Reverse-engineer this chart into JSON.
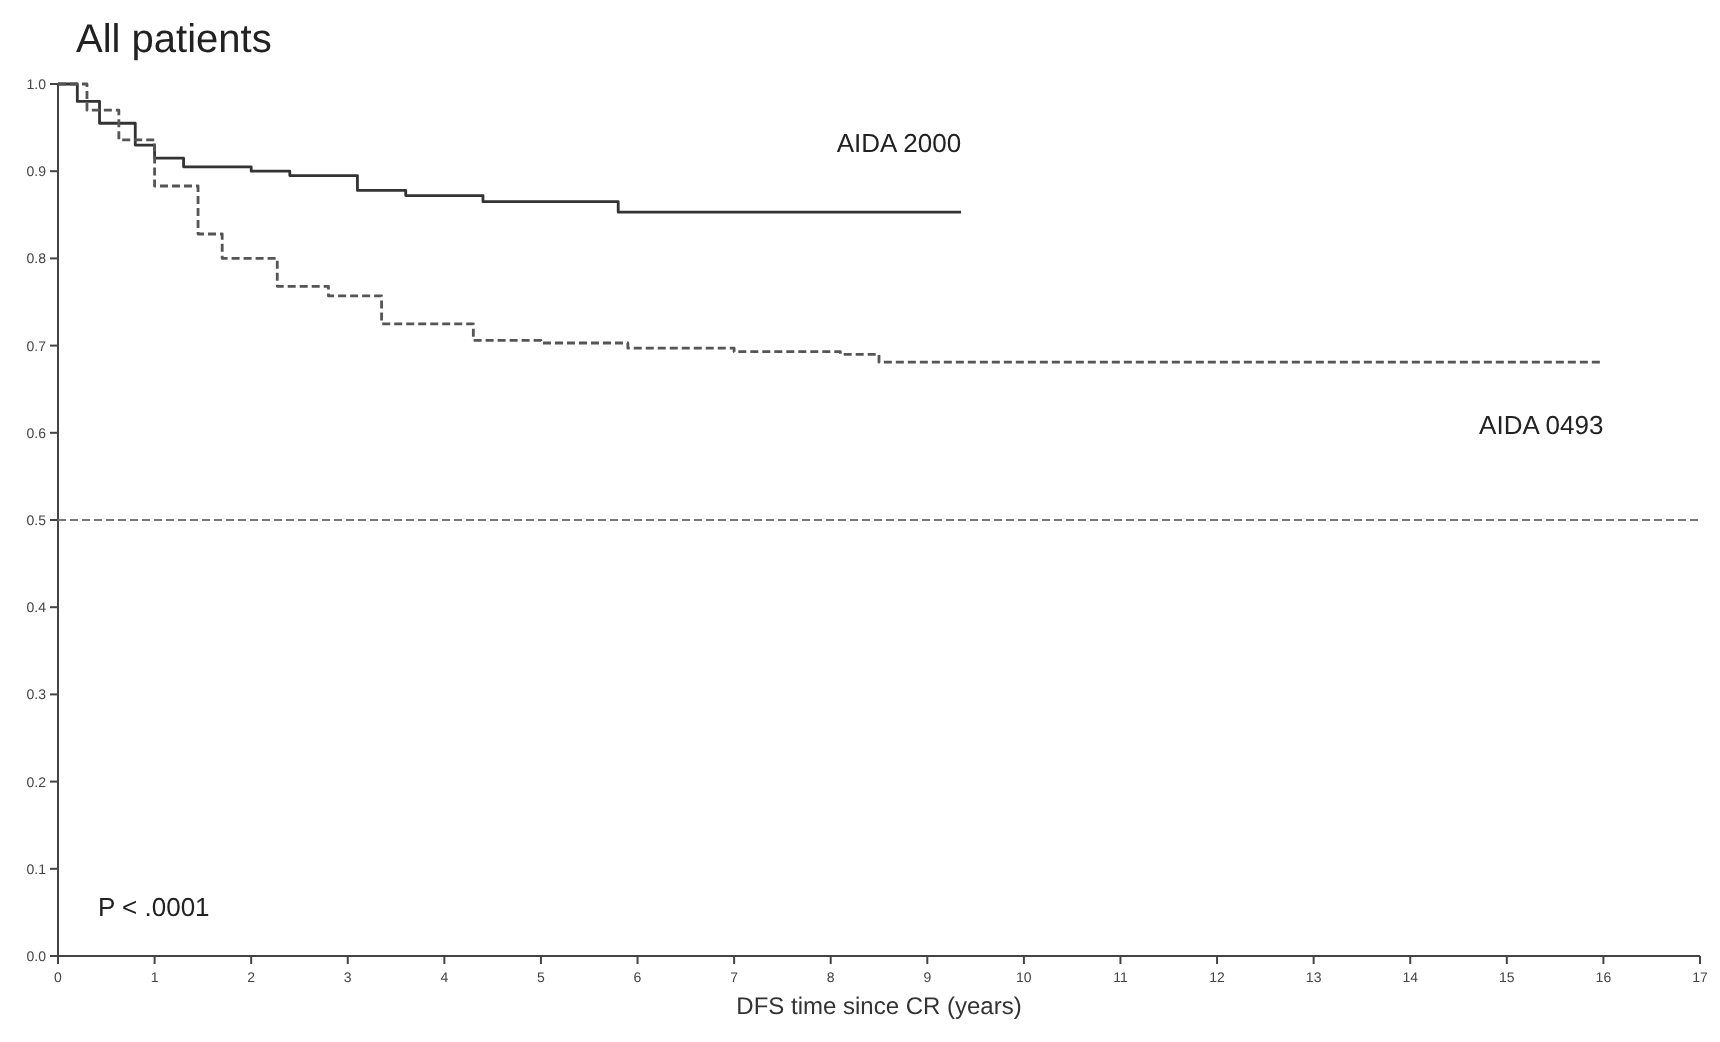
{
  "chart_data": {
    "type": "step",
    "title": "All patients",
    "xlabel": "DFS time since CR (years)",
    "xlim": [
      0,
      17
    ],
    "xticks": [
      0,
      1,
      2,
      3,
      4,
      5,
      6,
      7,
      8,
      9,
      10,
      11,
      12,
      13,
      14,
      15,
      16,
      17
    ],
    "ylim": [
      0,
      1
    ],
    "yticks": [
      {
        "value": 0,
        "label": "0.0"
      },
      0.1,
      0.2,
      0.3,
      0.4,
      0.5,
      0.6,
      0.7,
      0.8,
      0.9,
      {
        "value": 1,
        "label": "1.0"
      }
    ],
    "series": [
      {
        "name": "AIDA 2000",
        "color": "#333333",
        "line_style": "solid",
        "x": [
          0,
          0.2,
          0.43,
          0.8,
          1.0,
          1.3,
          2.0,
          2.4,
          3.1,
          3.6,
          4.4,
          5.0,
          5.8,
          7.0,
          8.0,
          9.35
        ],
        "values": [
          1.0,
          0.98,
          0.955,
          0.93,
          0.915,
          0.905,
          0.9,
          0.895,
          0.878,
          0.872,
          0.865,
          0.865,
          0.853,
          0.853,
          0.853,
          0.853
        ]
      },
      {
        "name": "AIDA 0493",
        "color": "#555555",
        "line_style": "dashed",
        "x": [
          0,
          0.3,
          0.63,
          1.0,
          1.45,
          1.7,
          2.27,
          2.8,
          3.35,
          4.3,
          5.0,
          5.9,
          7.0,
          8.1,
          8.5,
          10,
          12,
          14,
          16
        ],
        "values": [
          1.0,
          0.97,
          0.936,
          0.883,
          0.828,
          0.8,
          0.768,
          0.757,
          0.725,
          0.706,
          0.703,
          0.697,
          0.693,
          0.69,
          0.681,
          0.681,
          0.681,
          0.681,
          0.681
        ]
      }
    ],
    "ref_lines": [
      {
        "axis": "y",
        "value": 0.5,
        "line_style": "dashed",
        "color": "#777777"
      }
    ],
    "annotations": [
      "P < .0001"
    ],
    "grid": false
  }
}
